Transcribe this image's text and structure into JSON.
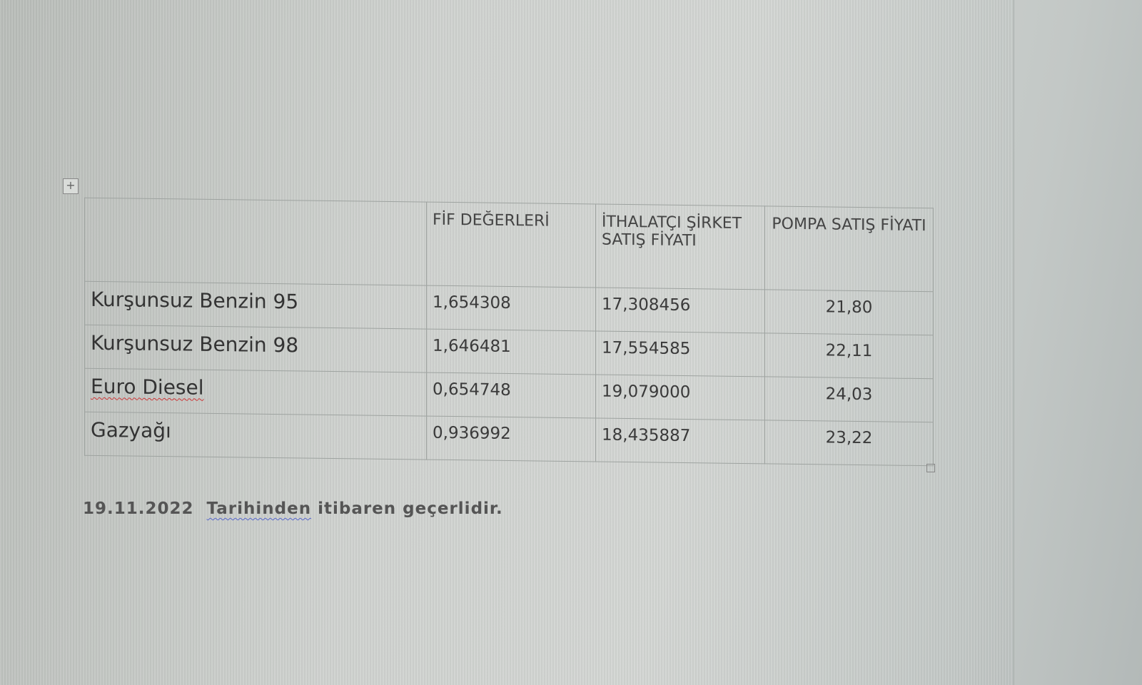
{
  "table": {
    "headers": [
      "",
      "FİF DEĞERLERİ",
      "İTHALATÇI ŞİRKET SATIŞ FİYATI",
      "POMPA SATIŞ FİYATI"
    ],
    "rows": [
      {
        "product": "Kurşunsuz Benzin 95",
        "fif": "1,654308",
        "importer": "17,308456",
        "pump": "21,80"
      },
      {
        "product": "Kurşunsuz Benzin 98",
        "fif": "1,646481",
        "importer": "17,554585",
        "pump": "22,11"
      },
      {
        "product": "Euro Diesel",
        "fif": "0,654748",
        "importer": "19,079000",
        "pump": "24,03"
      },
      {
        "product": "Gazyağı",
        "fif": "0,936992",
        "importer": "18,435887",
        "pump": "23,22"
      }
    ]
  },
  "note": {
    "date": "19.11.2022",
    "word": "Tarihinden",
    "rest": "itibaren geçerlidir."
  },
  "icons": {
    "table_move": "move-cross-icon",
    "table_resize": "resize-square-icon"
  }
}
